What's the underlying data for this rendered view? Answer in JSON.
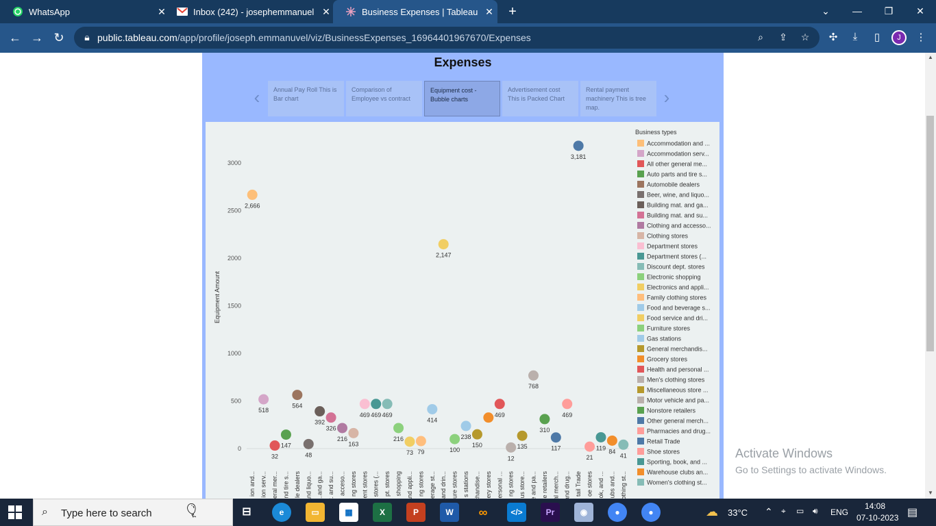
{
  "browser": {
    "tabs": [
      {
        "title": "WhatsApp",
        "icon": "whatsapp-icon",
        "active": false
      },
      {
        "title": "Inbox (242) - josephemmanuel",
        "icon": "gmail-icon",
        "active": false
      },
      {
        "title": "Business Expenses | Tableau Pub",
        "icon": "tableau-icon",
        "active": true
      }
    ],
    "url_host": "public.tableau.com",
    "url_path": "/app/profile/joseph.emmanuvel/viz/BusinessExpenses_16964401967670/Expenses",
    "profile_initial": "J"
  },
  "dashboard": {
    "title": "Expenses",
    "story_points": [
      {
        "label": "Annual Pay Roll This is Bar  chart",
        "active": false
      },
      {
        "label": "Comparison of Employee vs contract",
        "active": false
      },
      {
        "label": "Equipment cost - Bubble charts",
        "active": true
      },
      {
        "label": "Advertisement cost This is Packed Chart",
        "active": false
      },
      {
        "label": "Rental payment machinery        This is tree map.",
        "active": false
      }
    ]
  },
  "chart_data": {
    "type": "scatter",
    "ylabel": "Equipment Amount",
    "ylim": [
      -150,
      3300
    ],
    "yticks": [
      0,
      500,
      1000,
      1500,
      2000,
      2500,
      3000
    ],
    "legend_title": "Business types",
    "legend_position": "right",
    "legend": [
      {
        "label": "Accommodation and ...",
        "color": "#fdbf79"
      },
      {
        "label": "Accommodation serv...",
        "color": "#d4a6c8"
      },
      {
        "label": "All other general me...",
        "color": "#e15759"
      },
      {
        "label": "Auto parts and tire s...",
        "color": "#59a14f"
      },
      {
        "label": "Automobile dealers",
        "color": "#9c755f"
      },
      {
        "label": "Beer, wine, and liquo...",
        "color": "#79706e"
      },
      {
        "label": "Building mat. and ga...",
        "color": "#6b5f5a"
      },
      {
        "label": "Building mat. and su...",
        "color": "#d37295"
      },
      {
        "label": "Clothing and accesso...",
        "color": "#b07aa1"
      },
      {
        "label": "Clothing stores",
        "color": "#d7b5a6"
      },
      {
        "label": "Department stores",
        "color": "#fabfd2"
      },
      {
        "label": "Department stores (...",
        "color": "#499894"
      },
      {
        "label": "Discount dept. stores",
        "color": "#86bcb6"
      },
      {
        "label": "Electronic shopping",
        "color": "#8cd17d"
      },
      {
        "label": "Electronics and appli...",
        "color": "#f1ce63"
      },
      {
        "label": "Family clothing stores",
        "color": "#ffbe7d"
      },
      {
        "label": "Food and beverage s...",
        "color": "#a0cbe8"
      },
      {
        "label": "Food service and dri...",
        "color": "#f1ce63"
      },
      {
        "label": "Furniture stores",
        "color": "#8cd17d"
      },
      {
        "label": "Gas stations",
        "color": "#a0cbe8"
      },
      {
        "label": "General merchandis...",
        "color": "#b6992d"
      },
      {
        "label": "Grocery stores",
        "color": "#f28e2b"
      },
      {
        "label": "Health and personal ...",
        "color": "#e15759"
      },
      {
        "label": "Men's clothing stores",
        "color": "#bab0ac"
      },
      {
        "label": "Miscellaneous store ...",
        "color": "#b6992d"
      },
      {
        "label": "Motor vehicle and pa...",
        "color": "#bab0ac"
      },
      {
        "label": "Nonstore retailers",
        "color": "#59a14f"
      },
      {
        "label": "Other general merch...",
        "color": "#4e79a7"
      },
      {
        "label": "Pharmacies and drug...",
        "color": "#ff9d9a"
      },
      {
        "label": "Retail Trade",
        "color": "#4e79a7"
      },
      {
        "label": "Shoe stores",
        "color": "#ff9d9a"
      },
      {
        "label": "Sporting, book, and ...",
        "color": "#499894"
      },
      {
        "label": "Warehouse clubs an...",
        "color": "#f28e2b"
      },
      {
        "label": "Women's clothing st...",
        "color": "#86bcb6"
      }
    ],
    "categories": [
      "ion and...",
      "ion serv...",
      "eral mer...",
      "nd tire s...",
      "le dealers",
      "and liquo...",
      "...and ga...",
      "t. and su...",
      "acceso...",
      "ng stores",
      "ent stores",
      "stores (...",
      "pt. stores",
      "shopping",
      "and appli...",
      "ng stores",
      "erage st...",
      "and drin...",
      "ure stores",
      "s stations",
      "chandise...",
      "ery stores",
      "ersonal ...",
      "ng stores",
      "us store...",
      "le and pa...",
      "e retailers",
      "al merch...",
      "and drug...",
      "tail Trade",
      "oe stores",
      "ok, and ...",
      "ubs and...",
      "othing st..."
    ],
    "values": [
      2666,
      518,
      32,
      147,
      564,
      48,
      392,
      326,
      216,
      163,
      469,
      469,
      469,
      216,
      73,
      79,
      414,
      2147,
      100,
      238,
      150,
      326,
      469,
      12,
      135,
      768,
      310,
      117,
      469,
      3181,
      21,
      119,
      84,
      41
    ],
    "data_labels": [
      "2,666",
      "518",
      "32",
      "147",
      "564",
      "48",
      "392",
      "326",
      "216",
      "163",
      "469",
      "469",
      "469",
      "216",
      "73",
      "79",
      "414",
      "2,147",
      "100",
      "238",
      "150",
      "",
      "469",
      "12",
      "135",
      "768",
      "310",
      "117",
      "469",
      "3,181",
      "21",
      "119",
      "84",
      "41"
    ]
  },
  "watermark": {
    "line1": "Activate Windows",
    "line2": "Go to Settings to activate Windows."
  },
  "taskbar": {
    "search_placeholder": "Type here to search",
    "weather": "33°C",
    "language": "ENG",
    "time": "14:08",
    "date": "07-10-2023"
  }
}
